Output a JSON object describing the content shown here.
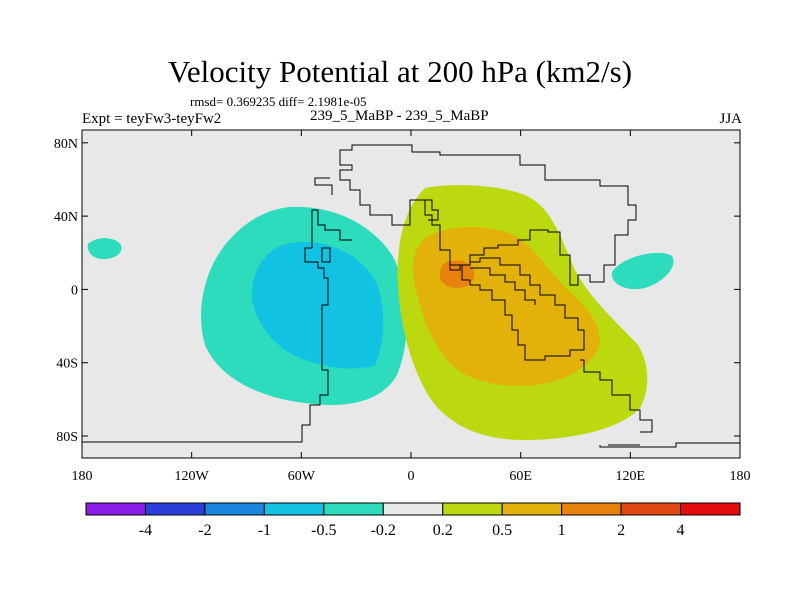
{
  "title": "Velocity Potential at 200 hPa (km2/s)",
  "stats": "rmsd= 0.369235 diff= 2.1981e-05",
  "experiment": "Expt = teyFw3-teyFw2",
  "case": "239_5_MaBP - 239_5_MaBP",
  "season": "JJA",
  "lat_ticks": [
    {
      "lat": 80,
      "label": "80N"
    },
    {
      "lat": 40,
      "label": "40N"
    },
    {
      "lat": 0,
      "label": "0"
    },
    {
      "lat": -40,
      "label": "40S"
    },
    {
      "lat": -80,
      "label": "80S"
    }
  ],
  "lon_ticks": [
    {
      "lon": -180,
      "label": "180"
    },
    {
      "lon": -120,
      "label": "120W"
    },
    {
      "lon": -60,
      "label": "60W"
    },
    {
      "lon": 0,
      "label": "0"
    },
    {
      "lon": 60,
      "label": "60E"
    },
    {
      "lon": 120,
      "label": "120E"
    },
    {
      "lon": 180,
      "label": "180"
    }
  ],
  "colorbar": {
    "colors": [
      "#8a1ee8",
      "#2b3fd8",
      "#1a86e0",
      "#12c2e2",
      "#2ddcbc",
      "#e8e8e8",
      "#bcd80e",
      "#e3b20a",
      "#e8820e",
      "#e04a12",
      "#e30d0d"
    ],
    "labels": [
      "-4",
      "-2",
      "-1",
      "-0.5",
      "-0.2",
      "0.2",
      "0.5",
      "1",
      "2",
      "4"
    ]
  },
  "background_color": "#e8e8e8",
  "coast_color": "#000000",
  "contour_levels": [
    -4,
    -2,
    -1,
    -0.5,
    -0.2,
    0.2,
    0.5,
    1,
    2,
    4
  ]
}
